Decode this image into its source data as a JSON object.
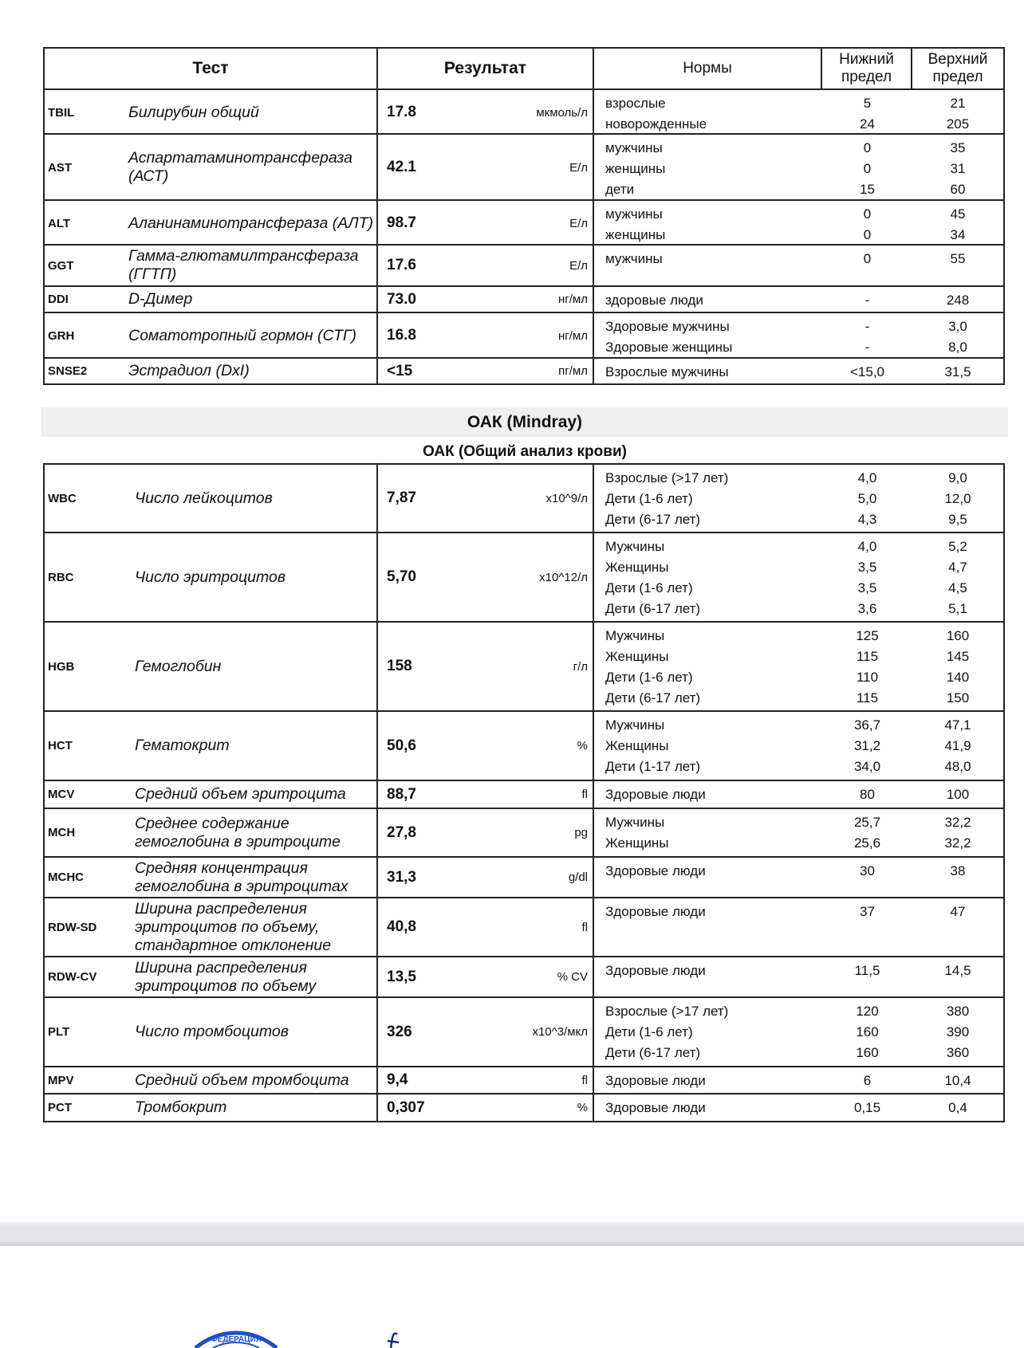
{
  "header": {
    "test": "Тест",
    "result": "Результат",
    "norms": "Нормы",
    "lower": "Нижний предел",
    "upper": "Верхний предел"
  },
  "biochem": [
    {
      "code": "TBIL",
      "name": "Билирубин общий",
      "value": "17.8",
      "unit": "мкмоль/л",
      "norms": [
        [
          "взрослые",
          "5",
          "21"
        ],
        [
          "новорожденные",
          "24",
          "205"
        ]
      ]
    },
    {
      "code": "AST",
      "name": "Аспартатаминотрансфераза (АСТ)",
      "value": "42.1",
      "unit": "Е/л",
      "norms": [
        [
          "мужчины",
          "0",
          "35"
        ],
        [
          "женщины",
          "0",
          "31"
        ],
        [
          "дети",
          "15",
          "60"
        ]
      ]
    },
    {
      "code": "ALT",
      "name": "Аланинаминотрансфераза (АЛТ)",
      "value": "98.7",
      "unit": "Е/л",
      "norms": [
        [
          "мужчины",
          "0",
          "45"
        ],
        [
          "женщины",
          "0",
          "34"
        ]
      ]
    },
    {
      "code": "GGT",
      "name": "Гамма-глютамилтрансфераза (ГГТП)",
      "value": "17.6",
      "unit": "Е/л",
      "norms": [
        [
          "мужчины",
          "0",
          "55"
        ]
      ]
    },
    {
      "code": "DDI",
      "name": "D-Димер",
      "value": "73.0",
      "unit": "нг/мл",
      "norms": [
        [
          "здоровые люди",
          "-",
          "248"
        ]
      ]
    },
    {
      "code": "GRH",
      "name": "Соматотропный гормон (СТГ)",
      "value": "16.8",
      "unit": "нг/мл",
      "norms": [
        [
          "Здоровые мужчины",
          "-",
          "3,0"
        ],
        [
          "Здоровые женщины",
          "-",
          "8,0"
        ]
      ]
    },
    {
      "code": "SNSE2",
      "name": "Эстрадиол (DxI)",
      "value": "<15",
      "unit": "пг/мл",
      "norms": [
        [
          "Взрослые мужчины",
          "<15,0",
          "31,5"
        ]
      ]
    }
  ],
  "section": {
    "title": "ОАК (Mindray)",
    "subtitle": "ОАК (Общий анализ крови)"
  },
  "cbc": [
    {
      "code": "WBC",
      "name": "Число лейкоцитов",
      "value": "7,87",
      "unit": "x10^9/л",
      "norms": [
        [
          "Взрослые (>17 лет)",
          "4,0",
          "9,0"
        ],
        [
          "Дети (1-6 лет)",
          "5,0",
          "12,0"
        ],
        [
          "Дети (6-17 лет)",
          "4,3",
          "9,5"
        ]
      ]
    },
    {
      "code": "RBC",
      "name": "Число эритроцитов",
      "value": "5,70",
      "unit": "x10^12/л",
      "norms": [
        [
          "Мужчины",
          "4,0",
          "5,2"
        ],
        [
          "Женщины",
          "3,5",
          "4,7"
        ],
        [
          "Дети (1-6 лет)",
          "3,5",
          "4,5"
        ],
        [
          "Дети (6-17 лет)",
          "3,6",
          "5,1"
        ]
      ]
    },
    {
      "code": "HGB",
      "name": "Гемоглобин",
      "value": "158",
      "unit": "г/л",
      "norms": [
        [
          "Мужчины",
          "125",
          "160"
        ],
        [
          "Женщины",
          "115",
          "145"
        ],
        [
          "Дети (1-6 лет)",
          "110",
          "140"
        ],
        [
          "Дети (6-17 лет)",
          "115",
          "150"
        ]
      ]
    },
    {
      "code": "HCT",
      "name": "Гематокрит",
      "value": "50,6",
      "unit": "%",
      "norms": [
        [
          "Мужчины",
          "36,7",
          "47,1"
        ],
        [
          "Женщины",
          "31,2",
          "41,9"
        ],
        [
          "Дети (1-17 лет)",
          "34,0",
          "48,0"
        ]
      ]
    },
    {
      "code": "MCV",
      "name": "Средний объем эритроцита",
      "value": "88,7",
      "unit": "fl",
      "norms": [
        [
          "Здоровые люди",
          "80",
          "100"
        ]
      ]
    },
    {
      "code": "MCH",
      "name": "Среднее содержание гемоглобина в эритроците",
      "value": "27,8",
      "unit": "pg",
      "norms": [
        [
          "Мужчины",
          "25,7",
          "32,2"
        ],
        [
          "Женщины",
          "25,6",
          "32,2"
        ]
      ]
    },
    {
      "code": "MCHC",
      "name": "Средняя концентрация гемоглобина в эритроцитах",
      "value": "31,3",
      "unit": "g/dl",
      "norms": [
        [
          "Здоровые люди",
          "30",
          "38"
        ]
      ]
    },
    {
      "code": "RDW-SD",
      "name": "Ширина распределения эритроцитов по объему, стандартное отклонение",
      "value": "40,8",
      "unit": "fl",
      "norms": [
        [
          "Здоровые люди",
          "37",
          "47"
        ]
      ]
    },
    {
      "code": "RDW-CV",
      "name": "Ширина распределения эритроцитов по объему",
      "value": "13,5",
      "unit": "% CV",
      "norms": [
        [
          "Здоровые люди",
          "11,5",
          "14,5"
        ]
      ]
    },
    {
      "code": "PLT",
      "name": "Число тромбоцитов",
      "value": "326",
      "unit": "x10^3/мкл",
      "norms": [
        [
          "Взрослые (>17 лет)",
          "120",
          "380"
        ],
        [
          "Дети (1-6 лет)",
          "160",
          "390"
        ],
        [
          "Дети (6-17 лет)",
          "160",
          "360"
        ]
      ]
    },
    {
      "code": "MPV",
      "name": "Средний объем тромбоцита",
      "value": "9,4",
      "unit": "fl",
      "norms": [
        [
          "Здоровые люди",
          "6",
          "10,4"
        ]
      ]
    },
    {
      "code": "PCT",
      "name": "Тромбокрит",
      "value": "0,307",
      "unit": "%",
      "norms": [
        [
          "Здоровые люди",
          "0,15",
          "0,4"
        ]
      ]
    }
  ],
  "stamp_text": "ФЕДЕРАЦИЯ",
  "colors": {
    "stamp": "#1f4fc4",
    "border": "#222222",
    "band": "#efefef"
  }
}
